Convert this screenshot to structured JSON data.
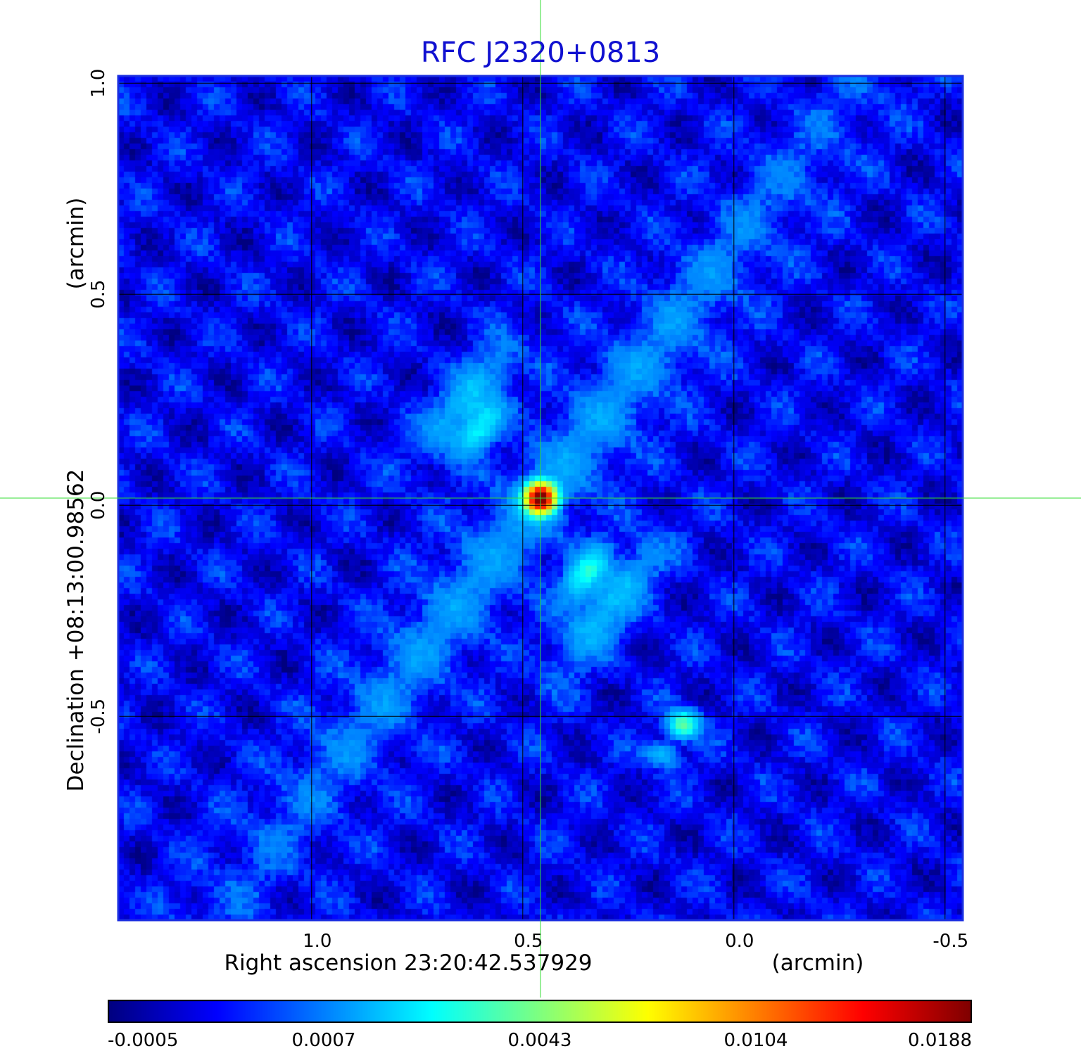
{
  "chart_data": {
    "type": "heatmap",
    "title": "RFC J2320+0813",
    "xlabel": "Right ascension  23:20:42.537929",
    "xunit": "(arcmin)",
    "ylabel": "Declination  +08:13:00.98562",
    "yunit": "(arcmin)",
    "x_axis": {
      "reversed": true,
      "range": [
        1.458,
        -0.542
      ],
      "ticks": [
        1.0,
        0.5,
        0.0,
        -0.5
      ],
      "tick_labels": [
        "1.0",
        "0.5",
        "0.0",
        "-0.5"
      ]
    },
    "y_axis": {
      "range": [
        -0.983,
        1.017
      ],
      "ticks": [
        1.0,
        0.5,
        0.0,
        -0.5
      ],
      "tick_labels": [
        "1.0",
        "0.5",
        "0.0",
        "-0.5"
      ]
    },
    "grid": true,
    "crosshair": {
      "x": 0.458,
      "y": 0.017,
      "color": "#33dd33"
    },
    "colormap": "jet",
    "colorbar": {
      "ticks": [
        -0.0005,
        0.0007,
        0.0043,
        0.0104,
        0.0188
      ],
      "tick_labels": [
        "-0.0005",
        "0.0007",
        "0.0043",
        "0.0104",
        "0.0188"
      ]
    },
    "features": [
      {
        "name": "core",
        "x": 0.458,
        "y": 0.017,
        "peak": 0.0188
      },
      {
        "name": "north-west jet",
        "x": 0.62,
        "y": 0.2,
        "peak": 0.0045
      },
      {
        "name": "south-east jet",
        "x": 0.33,
        "y": -0.2,
        "peak": 0.0047
      },
      {
        "name": "south-east knot",
        "x": 0.12,
        "y": -0.52,
        "peak": 0.0045
      },
      {
        "name": "south-east knot 2",
        "x": 0.17,
        "y": -0.59,
        "peak": 0.0022
      }
    ],
    "colors": {
      "title": "#1010d0",
      "frame": "#1a2ee0",
      "grid": "#000000",
      "crosshair": "#33dd33"
    }
  }
}
